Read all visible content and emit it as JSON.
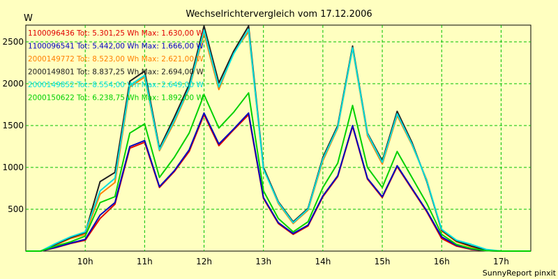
{
  "chart_data": {
    "type": "line",
    "title": "Wechselrichtervergleich vom 17.12.2006",
    "ylabel": "W",
    "footer": "SunnyReport pinxit",
    "ylim": [
      0,
      2700
    ],
    "xlim": [
      9.0,
      17.5
    ],
    "y_ticks": [
      500,
      1000,
      1500,
      2000,
      2500
    ],
    "x_ticks": [
      {
        "value": 10,
        "label": "10h"
      },
      {
        "value": 11,
        "label": "11h"
      },
      {
        "value": 12,
        "label": "12h"
      },
      {
        "value": 13,
        "label": "13h"
      },
      {
        "value": 14,
        "label": "14h"
      },
      {
        "value": 15,
        "label": "15h"
      },
      {
        "value": 16,
        "label": "16h"
      },
      {
        "value": 17,
        "label": "17h"
      }
    ],
    "grid": true,
    "legend_position": "top-left",
    "x": [
      9.0,
      9.25,
      9.5,
      9.75,
      10.0,
      10.25,
      10.5,
      10.75,
      11.0,
      11.25,
      11.5,
      11.75,
      12.0,
      12.25,
      12.5,
      12.75,
      13.0,
      13.25,
      13.5,
      13.75,
      14.0,
      14.25,
      14.5,
      14.75,
      15.0,
      15.25,
      15.5,
      15.75,
      16.0,
      16.25,
      16.5,
      16.75,
      17.0,
      17.25,
      17.5
    ],
    "series": [
      {
        "name": "1100096436 Tot: 5.301,25 Wh Max: 1.630,00 W",
        "color": "#e00000",
        "values": [
          0,
          0,
          40,
          90,
          130,
          390,
          560,
          1230,
          1300,
          760,
          950,
          1190,
          1630,
          1260,
          1450,
          1630,
          630,
          330,
          200,
          300,
          650,
          890,
          1490,
          860,
          640,
          1010,
          740,
          470,
          150,
          60,
          20,
          5,
          0,
          0,
          0
        ]
      },
      {
        "name": "1100096541 Tot: 5.442,00 Wh Max: 1.666,00 W",
        "color": "#0000c0",
        "values": [
          0,
          0,
          45,
          95,
          140,
          430,
          580,
          1250,
          1320,
          770,
          960,
          1210,
          1650,
          1280,
          1460,
          1650,
          640,
          340,
          210,
          310,
          660,
          900,
          1500,
          870,
          650,
          1020,
          750,
          480,
          170,
          70,
          25,
          5,
          0,
          0,
          0
        ]
      },
      {
        "name": "2000149772 Tot: 8.523,00 Wh Max: 2.621,00 W",
        "color": "#ff8000",
        "values": [
          0,
          0,
          70,
          150,
          200,
          680,
          820,
          1960,
          2080,
          1200,
          1540,
          1940,
          2600,
          1930,
          2380,
          2620,
          990,
          570,
          330,
          490,
          1080,
          1470,
          2420,
          1380,
          1040,
          1620,
          1270,
          850,
          240,
          110,
          50,
          10,
          0,
          0,
          0
        ]
      },
      {
        "name": "2000149801 Tot: 8.837,25 Wh Max: 2.694,00 W",
        "color": "#202020",
        "values": [
          0,
          0,
          80,
          160,
          220,
          830,
          940,
          2030,
          2150,
          1230,
          1600,
          1990,
          2690,
          2010,
          2390,
          2690,
          1000,
          590,
          350,
          510,
          1120,
          1500,
          2450,
          1410,
          1080,
          1670,
          1300,
          830,
          250,
          120,
          60,
          10,
          0,
          0,
          0
        ]
      },
      {
        "name": "2000149852 Tot: 8.554,00 Wh Max: 2.649,00 W",
        "color": "#00e0e0",
        "values": [
          0,
          0,
          90,
          170,
          230,
          720,
          870,
          1980,
          2100,
          1210,
          1560,
          1950,
          2640,
          1960,
          2360,
          2650,
          980,
          580,
          340,
          500,
          1100,
          1480,
          2430,
          1400,
          1060,
          1640,
          1280,
          840,
          260,
          130,
          80,
          20,
          0,
          0,
          0
        ]
      },
      {
        "name": "2000150622 Tot: 6.238,75 Wh Max: 1.892,00 W",
        "color": "#00d000",
        "values": [
          0,
          0,
          60,
          110,
          180,
          580,
          650,
          1410,
          1520,
          880,
          1120,
          1410,
          1870,
          1470,
          1660,
          1890,
          720,
          390,
          230,
          350,
          760,
          1050,
          1740,
          1000,
          760,
          1190,
          880,
          570,
          200,
          80,
          30,
          5,
          0,
          0,
          0
        ]
      }
    ]
  }
}
